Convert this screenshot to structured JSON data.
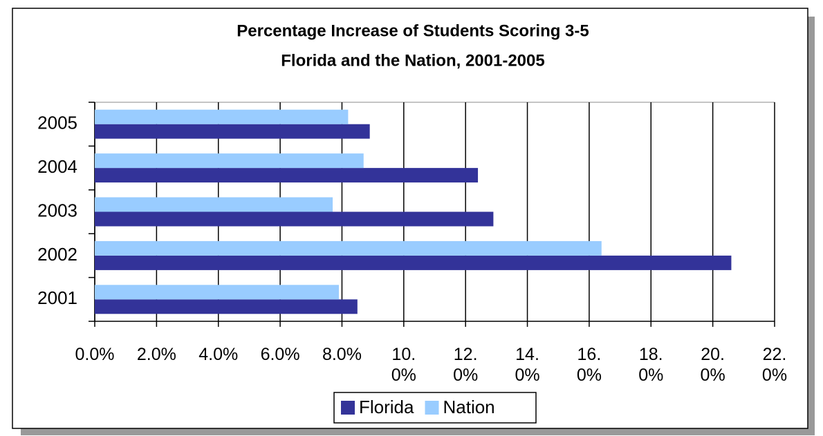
{
  "chart_data": {
    "type": "bar",
    "title": "Percentage Increase of Students Scoring 3-5",
    "subtitle": "Florida and the Nation, 2001-2005",
    "categories": [
      "2001",
      "2002",
      "2003",
      "2004",
      "2005"
    ],
    "series": [
      {
        "name": "Florida",
        "color": "#333399",
        "values": [
          8.5,
          20.6,
          12.9,
          12.4,
          8.9
        ]
      },
      {
        "name": "Nation",
        "color": "#99ccff",
        "values": [
          7.9,
          16.4,
          7.7,
          8.7,
          8.2
        ]
      }
    ],
    "xlim": [
      0,
      22
    ],
    "xticks": [
      {
        "value": 0,
        "label": "0.0%"
      },
      {
        "value": 2,
        "label": "2.0%"
      },
      {
        "value": 4,
        "label": "4.0%"
      },
      {
        "value": 6,
        "label": "6.0%"
      },
      {
        "value": 8,
        "label": "8.0%"
      },
      {
        "value": 10,
        "label": "10.0%"
      },
      {
        "value": 12,
        "label": "12.0%"
      },
      {
        "value": 14,
        "label": "14.0%"
      },
      {
        "value": 16,
        "label": "16.0%"
      },
      {
        "value": 18,
        "label": "18.0%"
      },
      {
        "value": 20,
        "label": "20.0%"
      },
      {
        "value": 22,
        "label": "22.0%"
      }
    ],
    "grid": true,
    "legend": "bottom"
  }
}
